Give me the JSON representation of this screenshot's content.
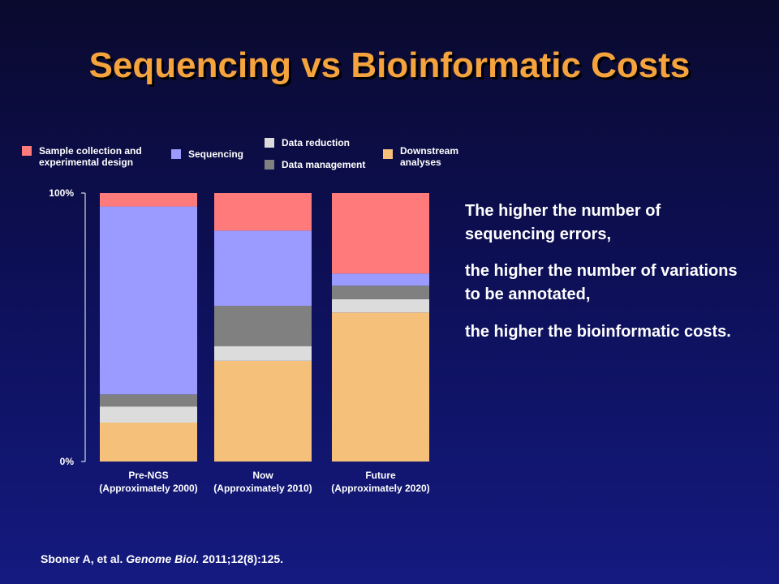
{
  "slide": {
    "title": "Sequencing vs Bioinformatic Costs",
    "notes": [
      "The higher the number of sequencing errors,",
      "the higher the number of variations to be annotated,",
      "the higher the bioinformatic costs."
    ],
    "citation": {
      "authors": "Sboner A, et al.",
      "journal": "Genome Biol.",
      "ref": "2011;12(8):125."
    }
  },
  "chart_data": {
    "type": "bar",
    "stacked": true,
    "percent": true,
    "categories": [
      [
        "Pre-NGS",
        "(Approximately 2000)"
      ],
      [
        "Now",
        "(Approximately 2010)"
      ],
      [
        "Future",
        "(Approximately 2020)"
      ]
    ],
    "y_tick_labels": [
      "0%",
      "100%"
    ],
    "ylim": [
      0,
      100
    ],
    "series": [
      {
        "name": "Downstream analyses",
        "color": "#f5c07a",
        "values": [
          14.5,
          37.5,
          55.5
        ]
      },
      {
        "name": "Data reduction",
        "color": "#dcdcdc",
        "values": [
          6,
          5.5,
          5
        ]
      },
      {
        "name": "Data management",
        "color": "#808080",
        "values": [
          4.5,
          15,
          5
        ]
      },
      {
        "name": "Sequencing",
        "color": "#9b9bff",
        "values": [
          70,
          28,
          4.5
        ]
      },
      {
        "name": "Sample collection and experimental design",
        "color": "#ff7b7b",
        "values": [
          5,
          14,
          30
        ]
      }
    ],
    "legend": [
      {
        "label": "Sample collection and experimental design",
        "color": "#ff7b7b"
      },
      {
        "label": "Sequencing",
        "color": "#9b9bff"
      },
      {
        "label": "Data reduction",
        "color": "#dcdcdc"
      },
      {
        "label": "Data management",
        "color": "#808080"
      },
      {
        "label": "Downstream analyses",
        "color": "#f5c07a"
      }
    ]
  }
}
